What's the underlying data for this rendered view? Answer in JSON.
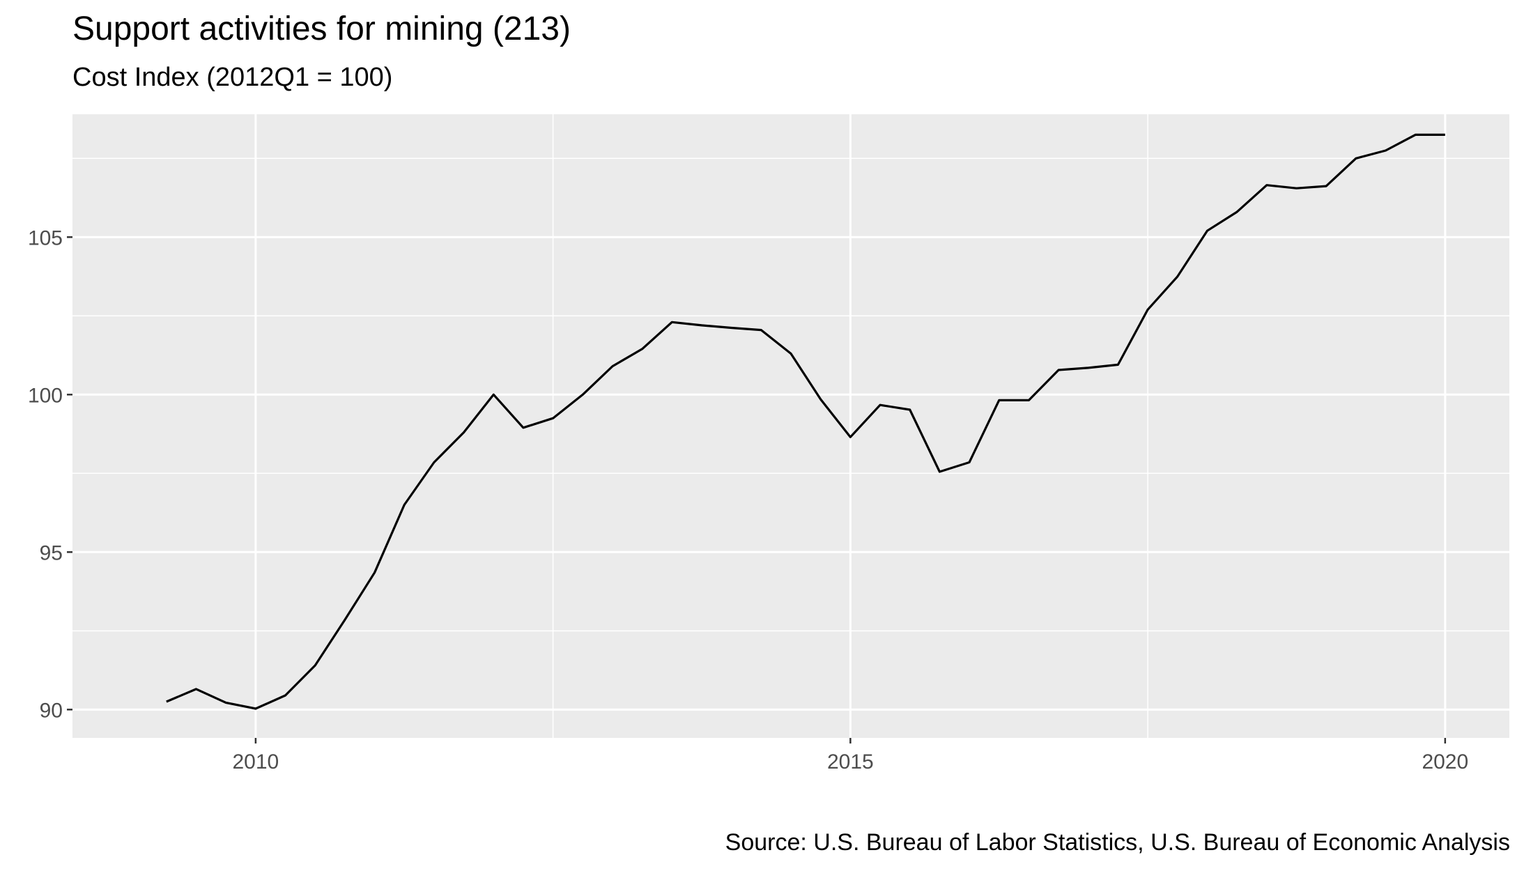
{
  "title": "Support activities for mining (213)",
  "subtitle": "Cost Index (2012Q1 = 100)",
  "caption": "Source: U.S. Bureau of Labor Statistics, U.S. Bureau of Economic Analysis",
  "colors": {
    "panel": "#ebebeb",
    "grid": "#ffffff",
    "line": "#000000",
    "tick_text": "#4d4d4d"
  },
  "chart_data": {
    "type": "line",
    "title": "Support activities for mining (213)",
    "subtitle": "Cost Index (2012Q1 = 100)",
    "xlabel": "",
    "ylabel": "",
    "xlim": [
      2008.46,
      2020.54
    ],
    "ylim": [
      89.1,
      108.9
    ],
    "x_ticks": [
      2010,
      2015,
      2020
    ],
    "x_tick_labels": [
      "2010",
      "2015",
      "2020"
    ],
    "y_ticks": [
      90,
      95,
      100,
      105
    ],
    "y_tick_labels": [
      "90",
      "95",
      "100",
      "105"
    ],
    "grid": true,
    "legend": "none",
    "series": [
      {
        "x": [
          2009.25,
          2009.5,
          2009.75,
          2010.0,
          2010.25,
          2010.5,
          2010.75,
          2011.0,
          2011.25,
          2011.5,
          2011.75,
          2012.0,
          2012.25,
          2012.5,
          2012.75,
          2013.0,
          2013.25,
          2013.5,
          2013.75,
          2014.0,
          2014.25,
          2014.5,
          2014.75,
          2015.0,
          2015.25,
          2015.5,
          2015.75,
          2016.0,
          2016.25,
          2016.5,
          2016.75,
          2017.0,
          2017.25,
          2017.5,
          2017.75,
          2018.0,
          2018.25,
          2018.5,
          2018.75,
          2019.0,
          2019.25,
          2019.5,
          2019.75,
          2020.0
        ],
        "y": [
          90.25,
          90.65,
          90.22,
          90.03,
          90.45,
          91.4,
          92.85,
          94.35,
          96.5,
          97.85,
          98.8,
          100.0,
          98.95,
          99.25,
          100.0,
          100.9,
          101.45,
          102.3,
          102.2,
          102.12,
          102.05,
          101.3,
          99.85,
          98.65,
          99.67,
          99.52,
          97.55,
          97.85,
          99.82,
          99.82,
          100.78,
          100.85,
          100.95,
          102.7,
          103.75,
          105.2,
          105.8,
          106.65,
          106.55,
          106.62,
          107.5,
          107.75,
          108.25,
          108.25
        ]
      }
    ]
  }
}
